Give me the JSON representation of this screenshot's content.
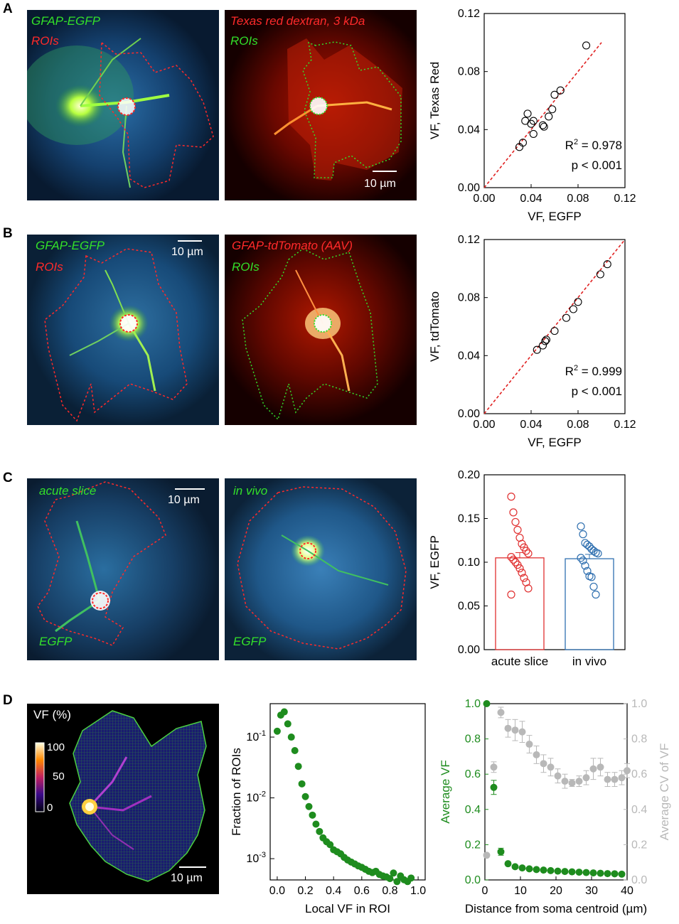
{
  "panels": {
    "A": {
      "letter": "A",
      "img1": {
        "label1": "GFAP-EGFP",
        "label2": "ROIs"
      },
      "img2": {
        "label1": "Texas red dextran, 3 kDa",
        "label2": "ROIs",
        "scale": "10 µm"
      }
    },
    "B": {
      "letter": "B",
      "img1": {
        "label1": "GFAP-EGFP",
        "label2": "ROIs",
        "scale": "10 µm"
      },
      "img2": {
        "label1": "GFAP-tdTomato (AAV)",
        "label2": "ROIs"
      }
    },
    "C": {
      "letter": "C",
      "img1": {
        "label1": "acute slice",
        "label2": "EGFP",
        "scale": "10 µm"
      },
      "img2": {
        "label1": "in vivo",
        "label2": "EGFP"
      }
    },
    "D": {
      "letter": "D",
      "img1": {
        "title": "VF (%)",
        "cb_max": "100",
        "cb_mid": "50",
        "cb_min": "0",
        "scale": "10 µm"
      }
    }
  },
  "colors": {
    "egfp": "#33e02a",
    "roi_red": "#ff2a2a",
    "fit": "#e02020",
    "green_dot": "#1e8c1e",
    "grey_dot": "#b8b8b8",
    "slice": "#e03030",
    "vivo": "#3070b0"
  },
  "chart_data": [
    {
      "id": "A",
      "type": "scatter",
      "xlabel": "VF, EGFP",
      "ylabel": "VF, Texas Red",
      "xlim": [
        0,
        0.12
      ],
      "ylim": [
        0,
        0.12
      ],
      "xticks": [
        "0.00",
        "0.04",
        "0.08",
        "0.12"
      ],
      "yticks": [
        "0.00",
        "0.04",
        "0.08",
        "0.12"
      ],
      "points": [
        [
          0.03,
          0.028
        ],
        [
          0.033,
          0.031
        ],
        [
          0.035,
          0.046
        ],
        [
          0.037,
          0.051
        ],
        [
          0.04,
          0.044
        ],
        [
          0.042,
          0.046
        ],
        [
          0.042,
          0.037
        ],
        [
          0.05,
          0.043
        ],
        [
          0.051,
          0.042
        ],
        [
          0.055,
          0.049
        ],
        [
          0.058,
          0.054
        ],
        [
          0.06,
          0.064
        ],
        [
          0.065,
          0.067
        ],
        [
          0.087,
          0.098
        ]
      ],
      "fit": [
        [
          0,
          0
        ],
        [
          0.1,
          0.1
        ]
      ],
      "annotations": {
        "r2_label": "R",
        "r2_exp": "2",
        "r2_value": " = 0.978",
        "p": "p < 0.001"
      }
    },
    {
      "id": "B",
      "type": "scatter",
      "xlabel": "VF, EGFP",
      "ylabel": "VF, tdTomato",
      "xlim": [
        0,
        0.12
      ],
      "ylim": [
        0,
        0.12
      ],
      "xticks": [
        "0.00",
        "0.04",
        "0.08",
        "0.12"
      ],
      "yticks": [
        "0.00",
        "0.04",
        "0.08",
        "0.12"
      ],
      "points": [
        [
          0.045,
          0.044
        ],
        [
          0.05,
          0.047
        ],
        [
          0.052,
          0.05
        ],
        [
          0.053,
          0.051
        ],
        [
          0.06,
          0.057
        ],
        [
          0.07,
          0.066
        ],
        [
          0.076,
          0.072
        ],
        [
          0.08,
          0.077
        ],
        [
          0.099,
          0.096
        ],
        [
          0.105,
          0.103
        ]
      ],
      "fit": [
        [
          0,
          0
        ],
        [
          0.12,
          0.12
        ]
      ],
      "annotations": {
        "r2_label": "R",
        "r2_exp": "2",
        "r2_value": " = 0.999",
        "p": "p < 0.001"
      }
    },
    {
      "id": "C",
      "type": "bar",
      "ylabel": "VF, EGFP",
      "ylim": [
        0,
        0.2
      ],
      "yticks": [
        "0.00",
        "0.05",
        "0.10",
        "0.15",
        "0.20"
      ],
      "categories": [
        "acute slice",
        "in vivo"
      ],
      "values": [
        0.105,
        0.104
      ],
      "errors": [
        0.006,
        0.005
      ],
      "points": [
        [
          0.175,
          0.157,
          0.146,
          0.137,
          0.128,
          0.121,
          0.117,
          0.113,
          0.11,
          0.106,
          0.103,
          0.1,
          0.097,
          0.093,
          0.088,
          0.082,
          0.077,
          0.07,
          0.063
        ],
        [
          0.141,
          0.132,
          0.122,
          0.12,
          0.118,
          0.115,
          0.113,
          0.111,
          0.11,
          0.105,
          0.102,
          0.096,
          0.09,
          0.084,
          0.083,
          0.072,
          0.063
        ]
      ]
    },
    {
      "id": "D2",
      "type": "scatter",
      "xlabel": "Local VF in ROI",
      "ylabel": "Fraction of ROIs",
      "xscale": "linear",
      "yscale": "log",
      "xlim": [
        -0.05,
        1.05
      ],
      "ylim_log10": [
        -3.35,
        -0.45
      ],
      "xticks": [
        "0.0",
        "0.2",
        "0.4",
        "0.6",
        "0.8",
        "1.0"
      ],
      "yticks": [
        {
          "base": "10",
          "exp": "-1",
          "v": -1
        },
        {
          "base": "10",
          "exp": "-2",
          "v": -2
        },
        {
          "base": "10",
          "exp": "-3",
          "v": -3
        }
      ],
      "x": [
        0.0,
        0.025,
        0.05,
        0.075,
        0.1,
        0.125,
        0.15,
        0.175,
        0.2,
        0.225,
        0.25,
        0.275,
        0.3,
        0.325,
        0.35,
        0.375,
        0.4,
        0.425,
        0.45,
        0.475,
        0.5,
        0.525,
        0.55,
        0.575,
        0.6,
        0.625,
        0.65,
        0.675,
        0.7,
        0.725,
        0.75,
        0.775,
        0.8,
        0.825,
        0.85,
        0.875,
        0.9,
        0.925,
        0.95
      ],
      "y": [
        0.125,
        0.23,
        0.26,
        0.165,
        0.1,
        0.06,
        0.033,
        0.017,
        0.0105,
        0.0072,
        0.0052,
        0.0037,
        0.0028,
        0.0022,
        0.0019,
        0.0017,
        0.0014,
        0.0013,
        0.0012,
        0.00105,
        0.00095,
        0.00088,
        0.00082,
        0.00076,
        0.00072,
        0.00067,
        0.00062,
        0.00059,
        0.00062,
        0.00055,
        0.00052,
        0.0005,
        0.00047,
        0.00058,
        0.00042,
        0.00052,
        0.00045,
        0.00042,
        0.00048
      ]
    },
    {
      "id": "D3",
      "type": "scatter",
      "xlabel": "Distance from soma centroid (µm)",
      "ylabel_left": "Average VF",
      "ylabel_right": "Average CV of VF",
      "xlim": [
        0,
        40
      ],
      "ylim_left": [
        0,
        1.0
      ],
      "ylim_right": [
        0,
        1.0
      ],
      "xticks": [
        "0",
        "10",
        "20",
        "30",
        "40"
      ],
      "yticks": [
        "0.0",
        "0.2",
        "0.4",
        "0.6",
        "0.8",
        "1.0"
      ],
      "series": [
        {
          "axis": "left",
          "x": [
            0.5,
            2.5,
            4.5,
            6.5,
            8.5,
            10.5,
            12.5,
            14.5,
            16.5,
            18.5,
            20.5,
            22.5,
            24.5,
            26.5,
            28.5,
            30.5,
            32.5,
            34.5,
            36.5,
            38.5
          ],
          "y": [
            1.0,
            0.525,
            0.16,
            0.092,
            0.075,
            0.068,
            0.063,
            0.059,
            0.056,
            0.053,
            0.05,
            0.048,
            0.046,
            0.044,
            0.042,
            0.04,
            0.038,
            0.036,
            0.035,
            0.033
          ],
          "err": [
            0.0,
            0.04,
            0.02,
            0.008,
            0.006,
            0.005,
            0.004,
            0.004,
            0.004,
            0.003,
            0.003,
            0.003,
            0.003,
            0.003,
            0.003,
            0.003,
            0.003,
            0.003,
            0.003,
            0.003
          ]
        },
        {
          "axis": "right",
          "x": [
            0.5,
            2.5,
            4.5,
            6.5,
            8.5,
            10.5,
            12.5,
            14.5,
            16.5,
            18.5,
            20.5,
            22.5,
            24.5,
            26.5,
            28.5,
            30.5,
            32.5,
            34.5,
            36.5,
            38.5,
            40
          ],
          "y": [
            0.14,
            0.64,
            0.95,
            0.86,
            0.85,
            0.84,
            0.77,
            0.71,
            0.66,
            0.64,
            0.59,
            0.56,
            0.55,
            0.56,
            0.58,
            0.63,
            0.64,
            0.57,
            0.57,
            0.58,
            0.62
          ],
          "err": [
            0.01,
            0.03,
            0.03,
            0.05,
            0.06,
            0.06,
            0.05,
            0.05,
            0.05,
            0.05,
            0.04,
            0.04,
            0.02,
            0.03,
            0.04,
            0.06,
            0.05,
            0.04,
            0.04,
            0.04,
            0.04
          ]
        }
      ]
    }
  ]
}
